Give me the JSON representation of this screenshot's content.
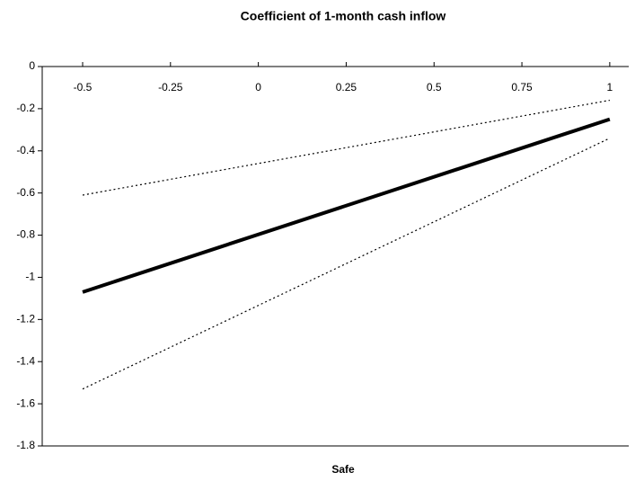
{
  "chart_data": {
    "type": "line",
    "title": "Coefficient of 1-month cash inflow",
    "x_label": "Safe",
    "x": [
      -0.5,
      1
    ],
    "series": [
      {
        "color": "#000000",
        "style": "solid",
        "values": [
          -1.07,
          -0.25
        ]
      },
      {
        "color": "#000000",
        "style": "dotted",
        "values": [
          -0.61,
          -0.16
        ]
      },
      {
        "color": "#000000",
        "style": "dotted",
        "values": [
          -1.53,
          -0.34
        ]
      }
    ],
    "xlim": [
      -0.615,
      1.054
    ],
    "xticks": [
      -0.5,
      -0.25,
      0,
      0.25,
      0.5,
      0.75,
      1
    ],
    "ylim": [
      -1.8,
      0
    ],
    "yticks": [
      0,
      -0.2,
      -0.4,
      -0.6,
      -0.8,
      -1,
      -1.2,
      -1.4,
      -1.6,
      -1.8
    ],
    "grid": false
  }
}
